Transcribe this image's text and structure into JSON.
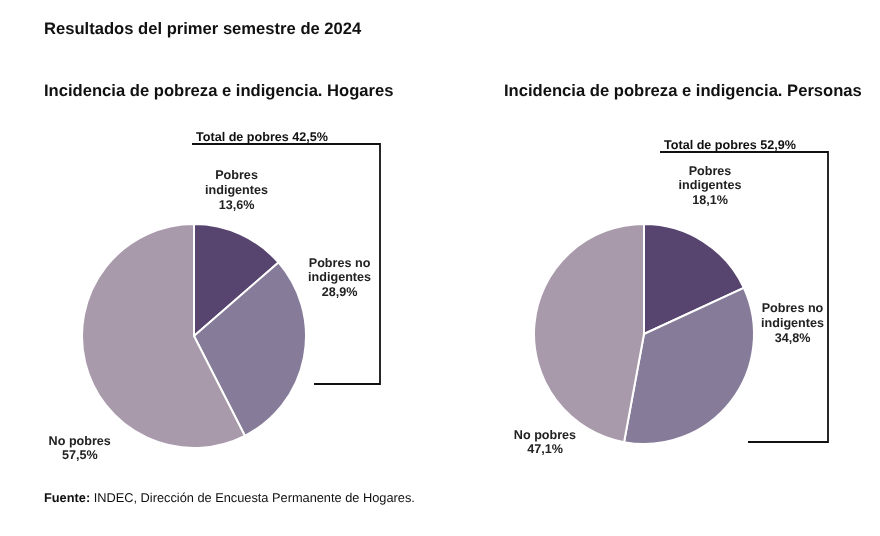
{
  "chart_data": [
    {
      "type": "pie",
      "title": "Incidencia de pobreza e indigencia. Hogares",
      "categories": [
        "Pobres indigentes",
        "Pobres no indigentes",
        "No pobres"
      ],
      "values": [
        13.6,
        28.9,
        57.5
      ],
      "value_labels": [
        "13,6%",
        "28,9%",
        "57,5%"
      ],
      "colors": [
        "#574570",
        "#867b99",
        "#a899ab"
      ],
      "annotations": [
        "Resultados del primer semestre de 2024",
        "Total de pobres 42,5%",
        "Fuente: INDEC, Dirección de Encuesta Permanente de Hogares."
      ]
    },
    {
      "type": "pie",
      "title": "Incidencia de pobreza e indigencia. Personas",
      "categories": [
        "Pobres indigentes",
        "Pobres no indigentes",
        "No pobres"
      ],
      "values": [
        18.1,
        34.8,
        47.1
      ],
      "value_labels": [
        "18,1%",
        "34,8%",
        "47,1%"
      ],
      "colors": [
        "#574570",
        "#867b99",
        "#a899ab"
      ],
      "annotations": [
        "Total de pobres 52,9%"
      ]
    }
  ]
}
